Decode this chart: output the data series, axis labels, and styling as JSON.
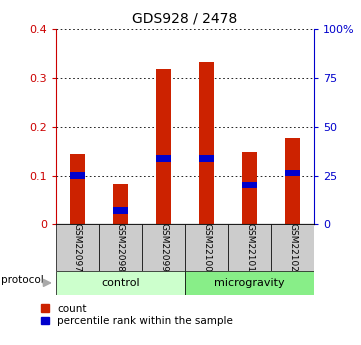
{
  "title": "GDS928 / 2478",
  "samples": [
    "GSM22097",
    "GSM22098",
    "GSM22099",
    "GSM22100",
    "GSM22101",
    "GSM22102"
  ],
  "red_values": [
    0.145,
    0.082,
    0.318,
    0.333,
    0.148,
    0.178
  ],
  "blue_values": [
    0.1,
    0.028,
    0.135,
    0.135,
    0.08,
    0.105
  ],
  "groups": [
    {
      "label": "control",
      "start": 0,
      "end": 3,
      "color": "#ccffcc"
    },
    {
      "label": "microgravity",
      "start": 3,
      "end": 6,
      "color": "#88ee88"
    }
  ],
  "ylim_left": [
    0,
    0.4
  ],
  "ylim_right": [
    0,
    100
  ],
  "yticks_left": [
    0,
    0.1,
    0.2,
    0.3,
    0.4
  ],
  "yticks_right": [
    0,
    25,
    50,
    75,
    100
  ],
  "ytick_labels_left": [
    "0",
    "0.1",
    "0.2",
    "0.3",
    "0.4"
  ],
  "ytick_labels_right": [
    "0",
    "25",
    "50",
    "75",
    "100%"
  ],
  "left_axis_color": "#cc0000",
  "right_axis_color": "#0000cc",
  "bar_color": "#cc2200",
  "marker_color": "#0000cc",
  "bg_label": "#cccccc",
  "bg_group_control": "#ccffcc",
  "bg_group_micro": "#88ee88",
  "legend_red": "count",
  "legend_blue": "percentile rank within the sample",
  "protocol_label": "protocol",
  "bar_width": 0.35
}
